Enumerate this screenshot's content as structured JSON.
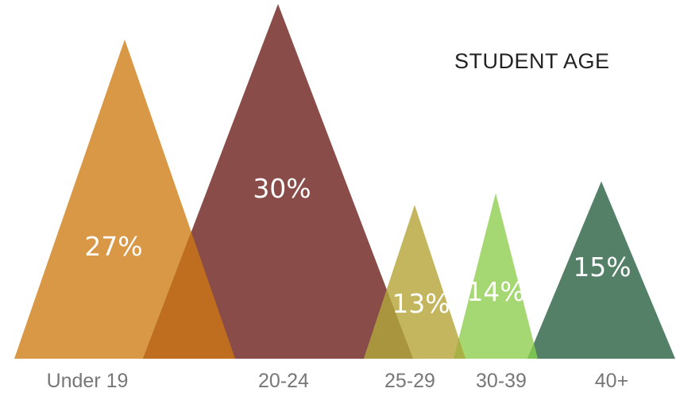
{
  "chart_data": {
    "type": "bar",
    "title": "STUDENT AGE",
    "categories": [
      "Under 19",
      "20-24",
      "25-29",
      "30-39",
      "40+"
    ],
    "values": [
      27,
      30,
      13,
      14,
      15
    ],
    "value_labels": [
      "27%",
      "30%",
      "13%",
      "14%",
      "15%"
    ],
    "colors": [
      "#D99845",
      "#8A4C48",
      "#C3B65E",
      "#A5D773",
      "#548068"
    ],
    "overlap_colors": [
      "#BF6E1F",
      "#A8953E",
      "#A9B144",
      "#7CC252"
    ],
    "xlabel": "",
    "ylabel": "",
    "grid": false,
    "legend": "none"
  }
}
